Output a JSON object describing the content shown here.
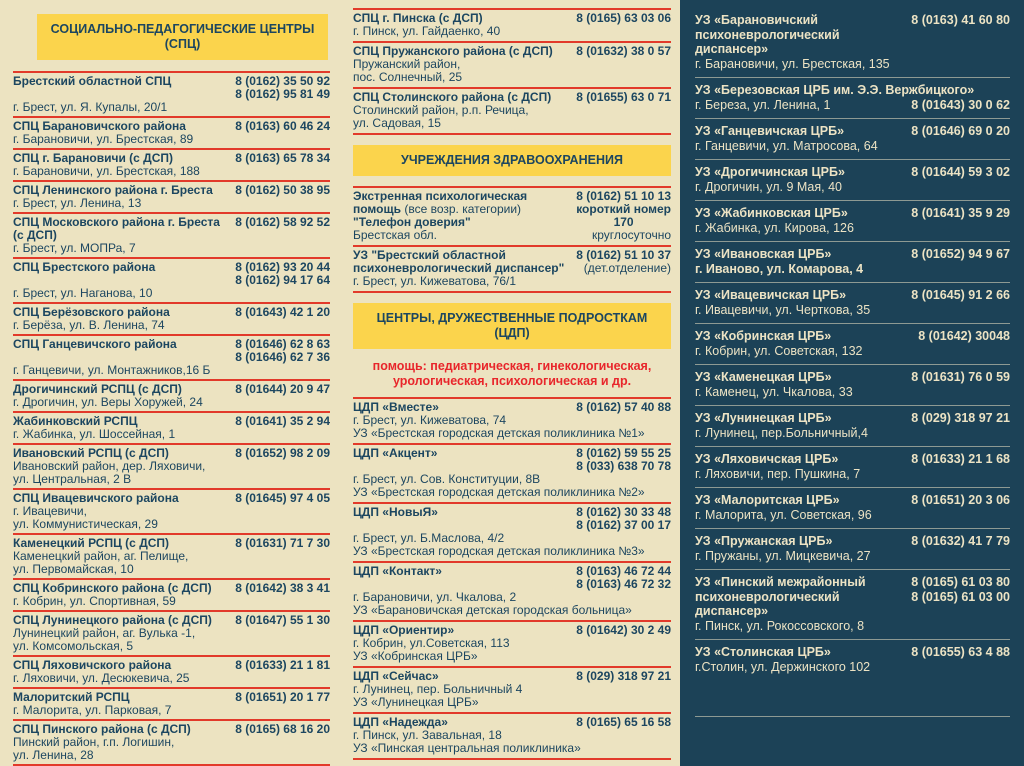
{
  "colors": {
    "page_background": "#ece3c1",
    "header_yellow": "#fbd44c",
    "text_navy": "#1c4660",
    "separator_red": "#e23a2a",
    "right_panel_navy": "#1c4257",
    "right_panel_text": "#ece3c4",
    "note_red": "#e8262b"
  },
  "left": {
    "header": "СОЦИАЛЬНО-ПЕДАГОГИЧЕСКИЕ ЦЕНТРЫ (СПЦ)",
    "entries": [
      {
        "name": "Брестский областной СПЦ",
        "address_lines": [
          "г. Брест, ул. Я. Купалы, 20/1"
        ],
        "phones": [
          "8 (0162) 35 50 92",
          "8 (0162) 95 81 49"
        ]
      },
      {
        "name": "СПЦ Барановичского района",
        "address_lines": [
          "г. Барановичи, ул. Брестская, 89"
        ],
        "phones": [
          "8 (0163) 60 46 24"
        ]
      },
      {
        "name": "СПЦ г. Барановичи (с ДСП)",
        "address_lines": [
          "г. Барановичи, ул. Брестская, 188"
        ],
        "phones": [
          "8 (0163) 65 78 34"
        ]
      },
      {
        "name": "СПЦ Ленинского района г. Бреста",
        "address_lines": [
          "г. Брест, ул. Ленина, 13"
        ],
        "phones": [
          "8 (0162) 50 38 95"
        ]
      },
      {
        "name": "СПЦ Московского района г. Бреста (с ДСП)",
        "address_lines": [
          "г. Брест, ул. МОПРа, 7"
        ],
        "phones": [
          "8 (0162) 58 92 52"
        ]
      },
      {
        "name": "СПЦ Брестского района",
        "address_lines": [
          "г. Брест, ул. Наганова, 10"
        ],
        "phones": [
          "8 (0162) 93 20 44",
          "8 (0162) 94 17 64"
        ]
      },
      {
        "name": "СПЦ Берёзовского района",
        "address_lines": [
          "г. Берёза, ул. В. Ленина, 74"
        ],
        "phones": [
          "8 (01643) 42 1 20"
        ]
      },
      {
        "name": "СПЦ Ганцевичского района",
        "address_lines": [
          "г. Ганцевичи, ул. Монтажников,16 Б"
        ],
        "phones": [
          "8 (01646) 62 8 63",
          "8 (01646) 62 7 36"
        ]
      },
      {
        "name": "Дрогичинский РСПЦ (с ДСП)",
        "address_lines": [
          "г. Дрогичин, ул. Веры Хоружей, 24"
        ],
        "phones": [
          "8 (01644) 20 9 47"
        ]
      },
      {
        "name": "Жабинковский РСПЦ",
        "address_lines": [
          "г. Жабинка, ул. Шоссейная, 1"
        ],
        "phones": [
          "8 (01641) 35 2 94"
        ]
      },
      {
        "name": "Ивановский РСПЦ (с ДСП)",
        "address_lines": [
          "Ивановский район, дер. Ляховичи,",
          "ул. Центральная, 2 В"
        ],
        "phones": [
          "8 (01652) 98 2 09"
        ]
      },
      {
        "name": "СПЦ Ивацевичского района",
        "address_lines": [
          "г. Ивацевичи,",
          "ул. Коммунистическая, 29"
        ],
        "phones": [
          "8 (01645) 97 4 05"
        ]
      },
      {
        "name": "Каменецкий РСПЦ (с ДСП)",
        "address_lines": [
          "Каменецкий район, аг. Пелище,",
          "ул. Первомайская, 10"
        ],
        "phones": [
          "8 (01631) 71 7 30"
        ]
      },
      {
        "name": "СПЦ Кобринского района (с ДСП)",
        "address_lines": [
          "г. Кобрин, ул. Спортивная, 59"
        ],
        "phones": [
          "8 (01642) 38 3 41"
        ]
      },
      {
        "name": "СПЦ Лунинецкого района (с ДСП)",
        "address_lines": [
          "Лунинецкий район, аг. Вулька -1,",
          "ул. Комсомольская, 5"
        ],
        "phones": [
          "8 (01647) 55 1 30"
        ]
      },
      {
        "name": "СПЦ Ляховичского района",
        "address_lines": [
          "г. Ляховичи, ул. Десюкевича, 25"
        ],
        "phones": [
          "8 (01633) 21 1 81"
        ]
      },
      {
        "name": "Малоритский РСПЦ",
        "address_lines": [
          "г. Малорита, ул. Парковая, 7"
        ],
        "phones": [
          "8 (01651) 20 1 77"
        ]
      },
      {
        "name": "СПЦ Пинского района (с ДСП)",
        "address_lines": [
          "Пинский район, г.п. Логишин,",
          "ул. Ленина, 28"
        ],
        "phones": [
          "8 (0165) 68 16 20"
        ]
      }
    ]
  },
  "middle": {
    "spc_entries": [
      {
        "name": "СПЦ г. Пинска (с ДСП)",
        "address_lines": [
          "г. Пинск, ул. Гайдаенко, 40"
        ],
        "phones": [
          "8 (0165) 63 03 06"
        ]
      },
      {
        "name": "СПЦ Пружанского района (с ДСП)",
        "address_lines": [
          "Пружанский район,",
          "пос. Солнечный, 25"
        ],
        "phones": [
          "8 (01632) 38 0 57"
        ]
      },
      {
        "name": "СПЦ Столинского района (с ДСП)",
        "address_lines": [
          "Столинский район, р.п. Речица,",
          "ул. Садовая, 15"
        ],
        "phones": [
          "8 (01655) 63 0 71"
        ]
      }
    ],
    "health_header": "УЧРЕЖДЕНИЯ ЗДРАВООХРАНЕНИЯ",
    "emergency": {
      "title": "Экстренная психологическая помощь",
      "title_note": "(все возр. категории)",
      "hotline_name": "\"Телефон доверия\"",
      "region": "Брестская обл.",
      "phone": "8 (0162) 51 10 13",
      "short_label": "короткий номер",
      "short_number": "170",
      "availability": "круглосуточно"
    },
    "dispensary": {
      "name": "УЗ \"Брестский областной психоневрологический диспансер\"",
      "address": "г. Брест, ул. Кижеватова, 76/1",
      "phone": "8 (0162) 51 10 37",
      "phone_note": "(дет.отделение)"
    },
    "cdp_header": "ЦЕНТРЫ, ДРУЖЕСТВЕННЫЕ ПОДРОСТКАМ (ЦДП)",
    "cdp_note": "помощь: педиатрическая, гинекологическая, урологическая, психологическая и др.",
    "cdp_entries": [
      {
        "name": "ЦДП «Вместе»",
        "address_lines": [
          "г. Брест, ул. Кижеватова, 74"
        ],
        "org": "УЗ «Брестская городская детская поликлиника №1»",
        "phones": [
          "8 (0162) 57 40 88"
        ]
      },
      {
        "name": "ЦДП «Акцент»",
        "address_lines": [
          "г. Брест, ул. Сов. Конституции, 8В"
        ],
        "org": "УЗ «Брестская городская детская поликлиника №2»",
        "phones": [
          "8 (0162) 59 55 25",
          "8 (033) 638 70 78"
        ]
      },
      {
        "name": "ЦДП «НовыЯ»",
        "address_lines": [
          "г. Брест, ул. Б.Маслова, 4/2"
        ],
        "org": "УЗ «Брестская городская детская поликлиника №3»",
        "phones": [
          "8 (0162) 30 33 48",
          "8 (0162) 37 00 17"
        ]
      },
      {
        "name": "ЦДП «Контакт»",
        "address_lines": [
          "г. Барановичи, ул. Чкалова, 2"
        ],
        "org": "УЗ «Барановичская детская городская больница»",
        "phones": [
          "8 (0163) 46 72 44",
          "8 (0163) 46 72 32"
        ]
      },
      {
        "name": "ЦДП «Ориентир»",
        "address_lines": [
          "г. Кобрин, ул.Советская, 113"
        ],
        "org": "УЗ «Кобринская ЦРБ»",
        "phones": [
          "8 (01642) 30 2 49"
        ]
      },
      {
        "name": "ЦДП «Сейчас»",
        "address_lines": [
          "г. Лунинец, пер. Больничный 4"
        ],
        "org": "УЗ «Лунинецкая ЦРБ»",
        "phones": [
          "8 (029) 318 97 21"
        ]
      },
      {
        "name": "ЦДП «Надежда»",
        "address_lines": [
          "г. Пинск, ул. Завальная, 18"
        ],
        "org": "УЗ «Пинская центральная поликлиника»",
        "phones": [
          "8 (0165) 65 16 58"
        ]
      }
    ]
  },
  "right": {
    "entries": [
      {
        "name": "УЗ «Барановичский психоневрологический диспансер»",
        "address_lines": [
          "г. Барановичи, ул. Брестская, 135"
        ],
        "phones": [
          "8 (0163) 41 60 80"
        ]
      },
      {
        "name": "УЗ «Березовская ЦРБ им. Э.Э. Вержбицкого»",
        "address_lines": [
          "г. Береза, ул. Ленина, 1"
        ],
        "phones": [
          "8 (01643) 30 0 62"
        ],
        "phone_beside_address": true
      },
      {
        "name": "УЗ «Ганцевичская ЦРБ»",
        "address_lines": [
          "г. Ганцевичи, ул. Матросова, 64"
        ],
        "phones": [
          "8 (01646) 69 0 20"
        ]
      },
      {
        "name": "УЗ «Дрогичинская ЦРБ»",
        "address_lines": [
          "г. Дрогичин, ул. 9 Мая, 40"
        ],
        "phones": [
          "8 (01644) 59 3 02"
        ]
      },
      {
        "name": "УЗ «Жабинковская ЦРБ»",
        "address_lines": [
          "г. Жабинка, ул. Кирова, 126"
        ],
        "phones": [
          "8 (01641) 35 9 29"
        ]
      },
      {
        "name": "УЗ «Ивановская ЦРБ»",
        "address_lines": [
          "г. Иваново, ул. Комарова, 4"
        ],
        "phones": [
          "8 (01652) 94 9 67"
        ],
        "bold_address": true
      },
      {
        "name": "УЗ «Ивацевичская ЦРБ»",
        "address_lines": [
          "г. Ивацевичи, ул. Черткова, 35"
        ],
        "phones": [
          "8 (01645) 91 2 66"
        ]
      },
      {
        "name": "УЗ «Кобринская ЦРБ»",
        "address_lines": [
          "г. Кобрин, ул. Советская, 132"
        ],
        "phones": [
          "8 (01642) 30048"
        ]
      },
      {
        "name": "УЗ «Каменецкая ЦРБ»",
        "address_lines": [
          "г. Каменец, ул. Чкалова, 33"
        ],
        "phones": [
          "8 (01631) 76 0 59"
        ]
      },
      {
        "name": "УЗ «Лунинецкая ЦРБ»",
        "address_lines": [
          "г. Лунинец, пер.Больничный,4"
        ],
        "phones": [
          "8 (029) 318 97 21"
        ]
      },
      {
        "name": "УЗ «Ляховичская ЦРБ»",
        "address_lines": [
          "г. Ляховичи, пер. Пушкина, 7"
        ],
        "phones": [
          "8 (01633) 21 1 68"
        ]
      },
      {
        "name": "УЗ «Малоритская ЦРБ»",
        "address_lines": [
          "г. Малорита, ул. Советская, 96"
        ],
        "phones": [
          "8 (01651) 20 3 06"
        ]
      },
      {
        "name": "УЗ «Пружанская ЦРБ»",
        "address_lines": [
          "г. Пружаны, ул. Мицкевича, 27"
        ],
        "phones": [
          "8 (01632) 41 7 79"
        ]
      },
      {
        "name": "УЗ «Пинский межрайонный психоневрологический диспансер»",
        "address_lines": [
          "г. Пинск, ул. Рокоссовского, 8"
        ],
        "phones": [
          "8 (0165) 61 03 80",
          "8 (0165) 61 03 00"
        ]
      },
      {
        "name": "УЗ «Столинская ЦРБ»",
        "address_lines": [
          "г.Столин, ул. Держинского 102"
        ],
        "phones": [
          "8 (01655) 63 4 88"
        ]
      }
    ]
  }
}
